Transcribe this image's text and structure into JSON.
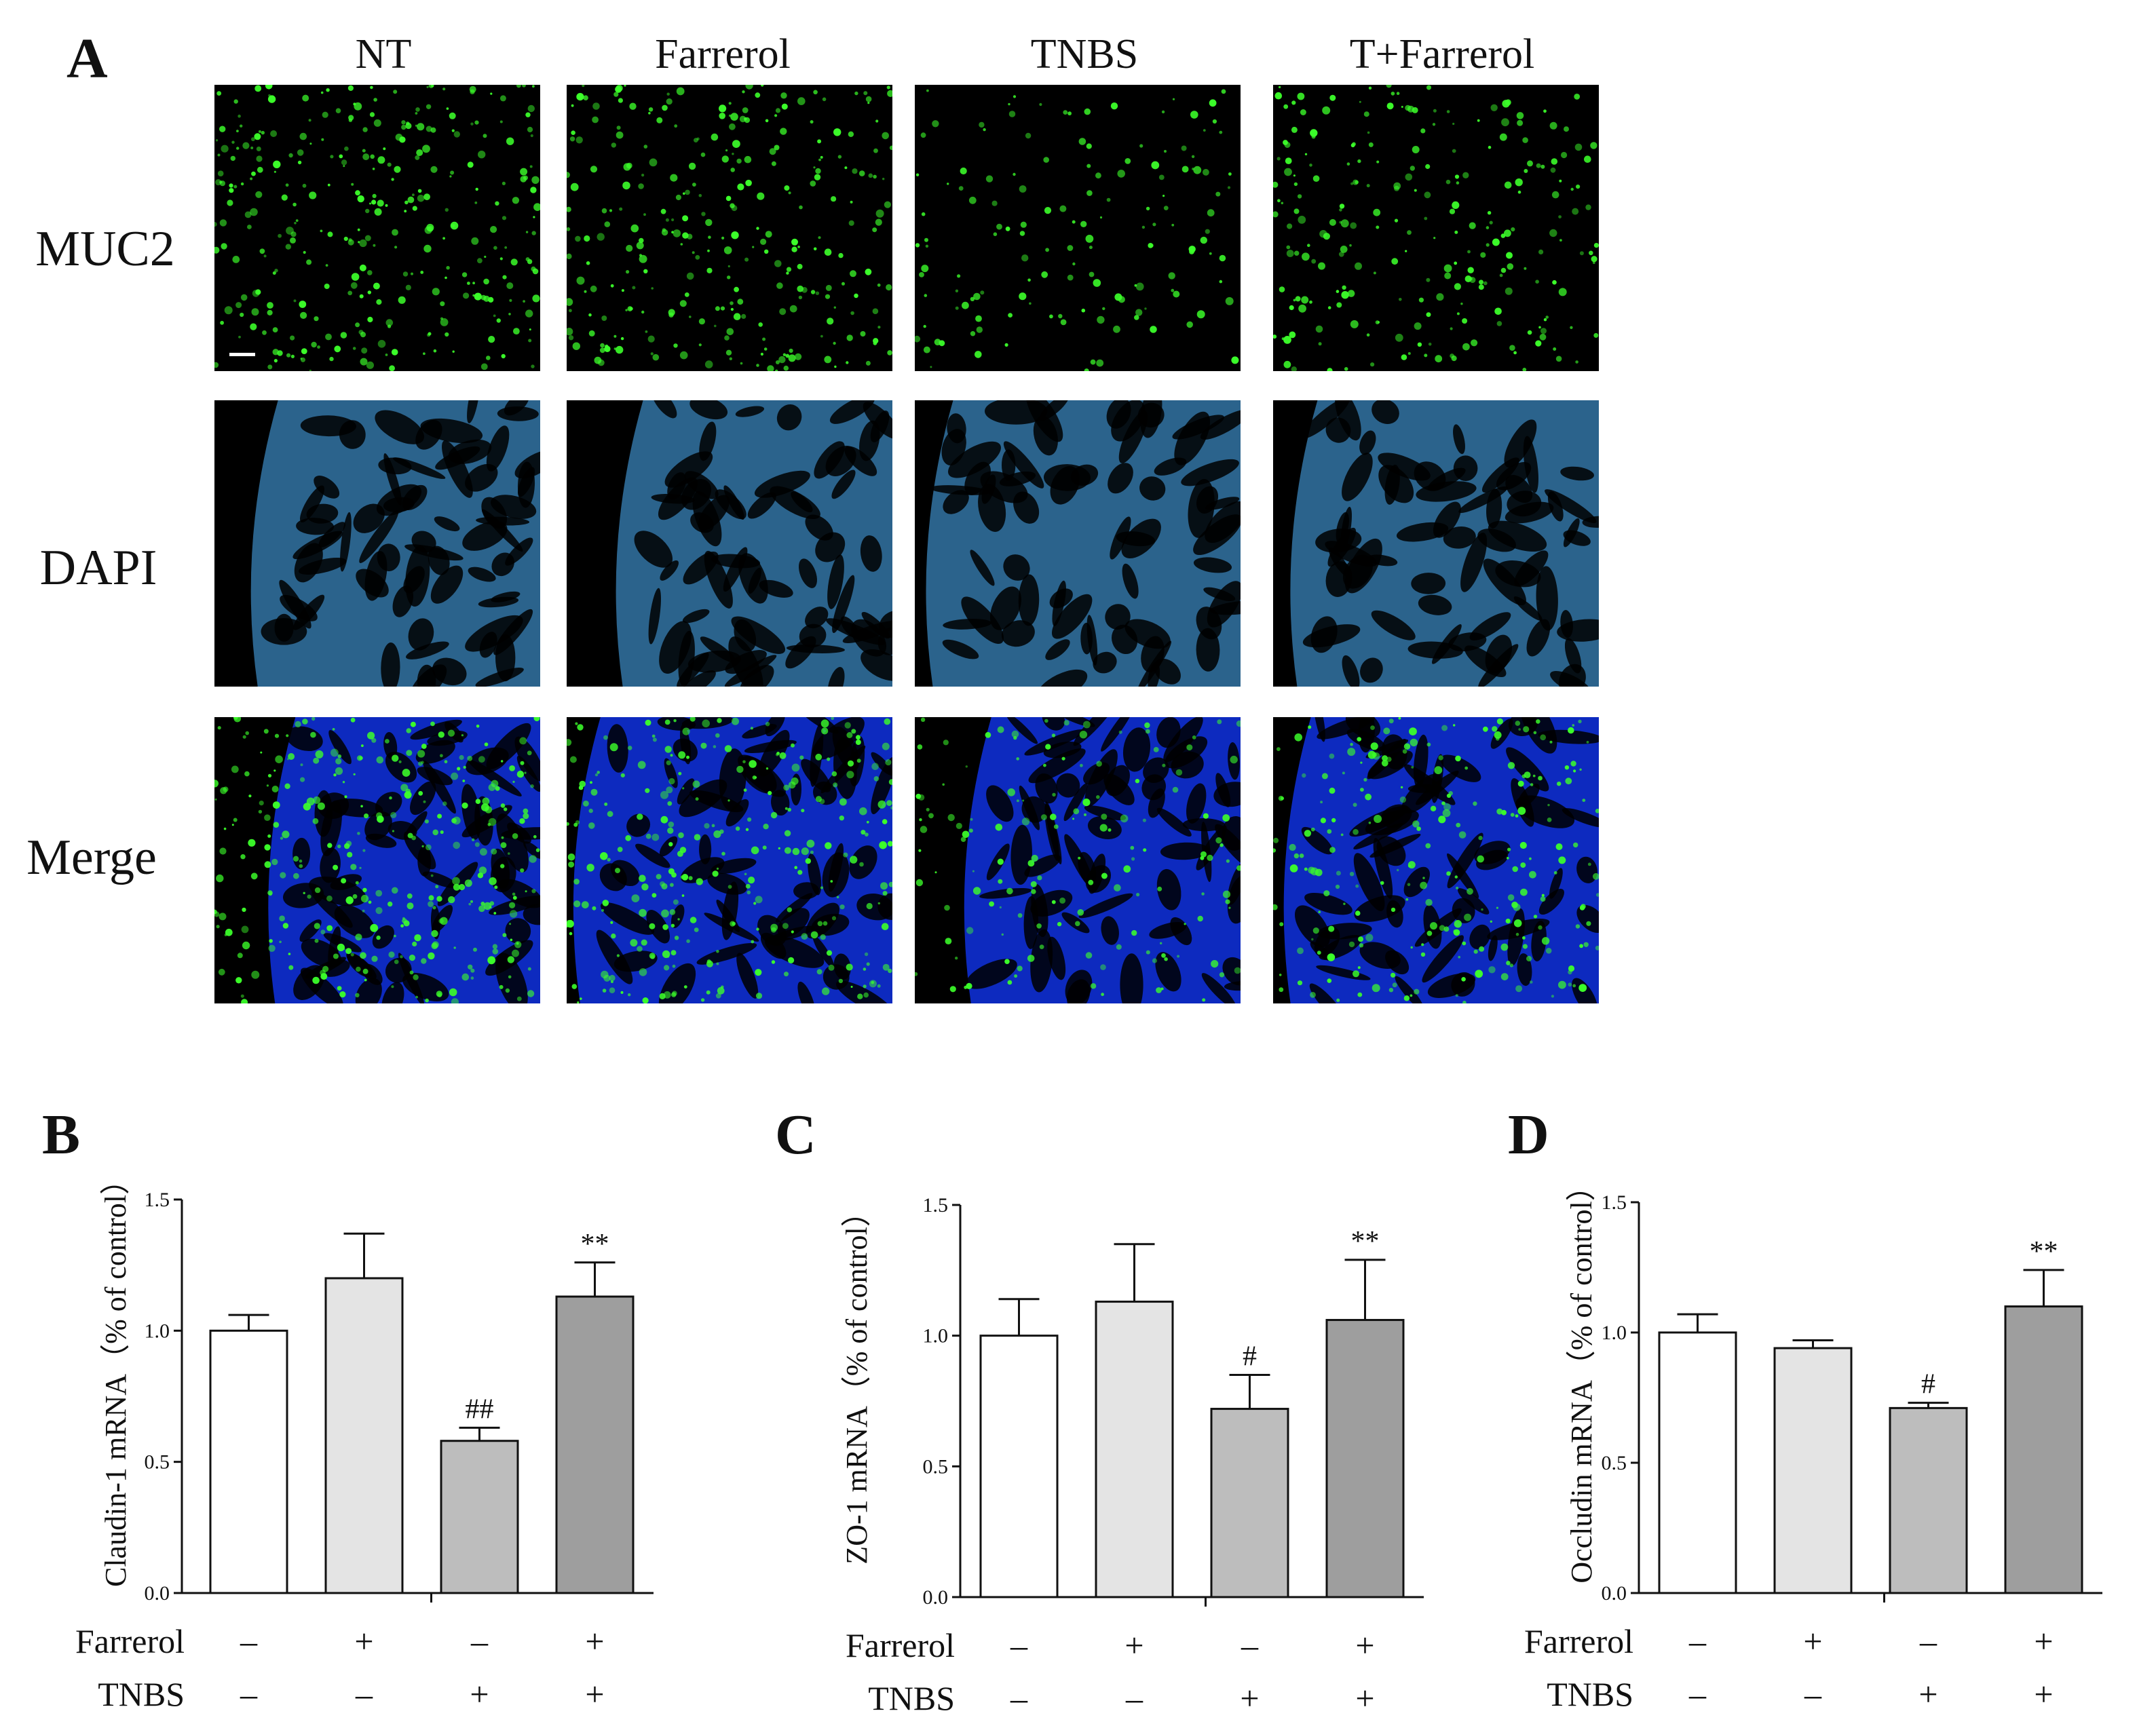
{
  "figure": {
    "panel_a": {
      "letter": "A",
      "columns": [
        "NT",
        "Farrerol",
        "TNBS",
        "T+Farrerol"
      ],
      "rows": [
        "MUC2",
        "DAPI",
        "Merge"
      ],
      "colors": {
        "muc2": "#3cff2a",
        "dapi": "#4fb4ff",
        "merge_base": "#1238ff",
        "background": "#000000"
      }
    }
  },
  "chart_data": [
    {
      "type": "bar",
      "panel": "B",
      "ylabel": "Claudin-1 mRNA（% of control）",
      "ylim": [
        0,
        1.5
      ],
      "yticks": [
        "0.0",
        "0.5",
        "1.0",
        "1.5"
      ],
      "values": [
        1.0,
        1.2,
        0.58,
        1.13
      ],
      "errors": [
        0.06,
        0.17,
        0.05,
        0.13
      ],
      "significance": [
        "",
        "",
        "##",
        "**"
      ],
      "bar_colors": [
        "#ffffff",
        "#e4e4e4",
        "#bdbdbd",
        "#9e9e9e"
      ],
      "conditions": [
        {
          "name": "Farrerol",
          "values": [
            "–",
            "+",
            "–",
            "+"
          ]
        },
        {
          "name": "TNBS",
          "values": [
            "–",
            "–",
            "+",
            "+"
          ]
        }
      ]
    },
    {
      "type": "bar",
      "panel": "C",
      "ylabel": "ZO-1 mRNA（% of control）",
      "ylim": [
        0,
        1.5
      ],
      "yticks": [
        "0.0",
        "0.5",
        "1.0",
        "1.5"
      ],
      "values": [
        1.0,
        1.13,
        0.72,
        1.06
      ],
      "errors": [
        0.14,
        0.22,
        0.13,
        0.23
      ],
      "significance": [
        "",
        "",
        "#",
        "**"
      ],
      "bar_colors": [
        "#ffffff",
        "#e4e4e4",
        "#bdbdbd",
        "#9e9e9e"
      ],
      "conditions": [
        {
          "name": "Farrerol",
          "values": [
            "–",
            "+",
            "–",
            "+"
          ]
        },
        {
          "name": "TNBS",
          "values": [
            "–",
            "–",
            "+",
            "+"
          ]
        }
      ]
    },
    {
      "type": "bar",
      "panel": "D",
      "ylabel": "Occludin mRNA（% of control）",
      "ylim": [
        0,
        1.5
      ],
      "yticks": [
        "0.0",
        "0.5",
        "1.0",
        "1.5"
      ],
      "values": [
        1.0,
        0.94,
        0.71,
        1.1
      ],
      "errors": [
        0.07,
        0.03,
        0.02,
        0.14
      ],
      "significance": [
        "",
        "",
        "#",
        "**"
      ],
      "bar_colors": [
        "#ffffff",
        "#e4e4e4",
        "#bdbdbd",
        "#9e9e9e"
      ],
      "conditions": [
        {
          "name": "Farrerol",
          "values": [
            "–",
            "+",
            "–",
            "+"
          ]
        },
        {
          "name": "TNBS",
          "values": [
            "–",
            "–",
            "+",
            "+"
          ]
        }
      ]
    }
  ]
}
